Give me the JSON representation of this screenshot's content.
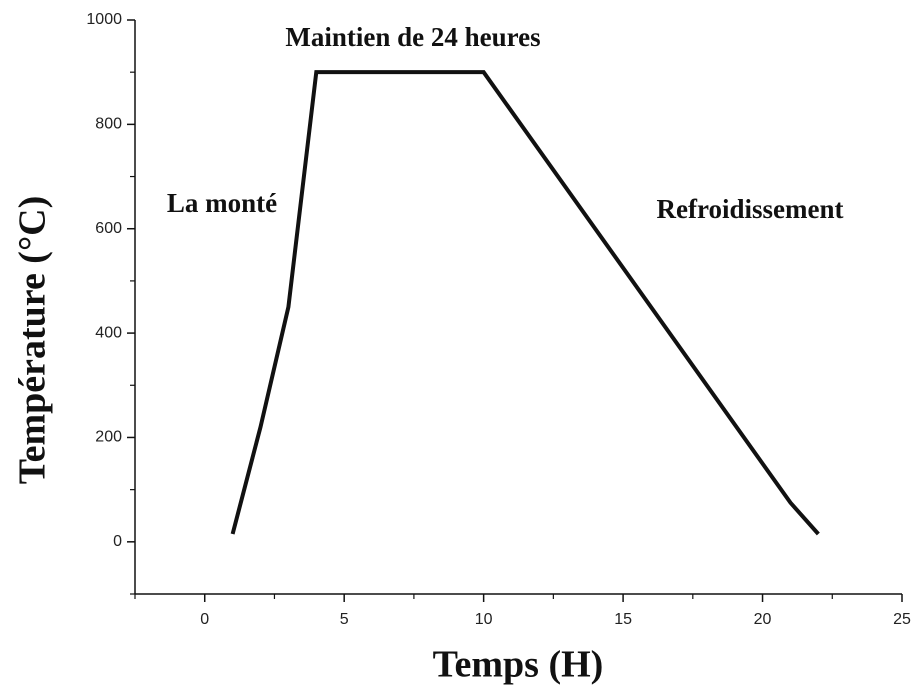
{
  "chart_data": {
    "type": "line",
    "x_label": "Temps (H)",
    "y_label": "Température (°C)",
    "x": [
      1,
      2,
      3,
      4,
      10,
      21,
      22
    ],
    "series": [
      {
        "color": "#111111",
        "values": [
          15,
          220,
          450,
          900,
          900,
          75,
          15
        ]
      }
    ],
    "xlim": [
      -2.5,
      25
    ],
    "xticks": [
      0,
      5,
      10,
      15,
      20,
      25
    ],
    "xminorticks": [
      -2.5,
      2.5,
      7.5,
      12.5,
      17.5,
      22.5
    ],
    "ylim": [
      -100,
      1000
    ],
    "yticks": [
      0,
      200,
      400,
      600,
      800,
      1000
    ],
    "yminorticks": [
      -100,
      100,
      300,
      500,
      700,
      900
    ],
    "annotations": [
      "Maintien de 24 heures",
      "La monté",
      "Refroidissement"
    ]
  }
}
